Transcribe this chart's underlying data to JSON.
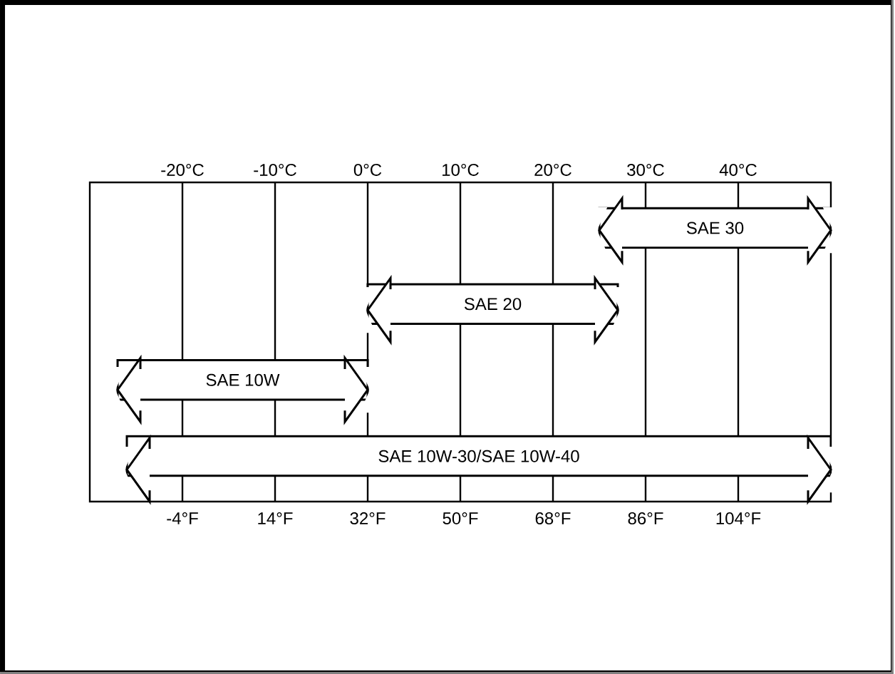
{
  "chart_data": {
    "type": "bar",
    "orientation": "horizontal",
    "grid": "x",
    "categories": [
      "SAE 30",
      "SAE 20",
      "SAE 10W",
      "SAE 10W-30/SAE 10W-40"
    ],
    "base": [
      25,
      0,
      -27,
      -26
    ],
    "values": [
      25,
      27,
      27,
      76
    ],
    "color": "#ffffff",
    "xlim": [
      -30,
      50
    ],
    "xticks": [
      {
        "value": -20,
        "label": "-20°C"
      },
      {
        "value": -10,
        "label": "-10°C"
      },
      {
        "value": 0,
        "label": "0°C"
      },
      {
        "value": 10,
        "label": "10°C"
      },
      {
        "value": 20,
        "label": "20°C"
      },
      {
        "value": 30,
        "label": "30°C"
      },
      {
        "value": 40,
        "label": "40°C"
      }
    ],
    "x2lim": [
      -22,
      122
    ],
    "x2ticks": [
      {
        "value": -4,
        "label": "-4°F"
      },
      {
        "value": 14,
        "label": "14°F"
      },
      {
        "value": 32,
        "label": "32°F"
      },
      {
        "value": 50,
        "label": "50°F"
      },
      {
        "value": 68,
        "label": "68°F"
      },
      {
        "value": 86,
        "label": "86°F"
      },
      {
        "value": 104,
        "label": "104°F"
      }
    ]
  }
}
